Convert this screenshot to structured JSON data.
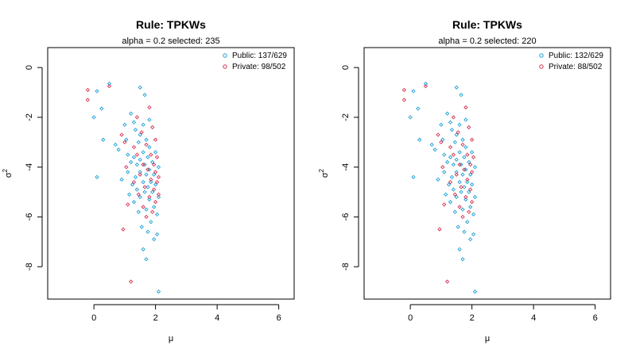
{
  "figure": {
    "colors": {
      "public": "#1a9fd6",
      "private": "#d6304e",
      "axis": "#000000"
    }
  },
  "chart_data": [
    {
      "type": "scatter",
      "title": "Rule:  TPKWs",
      "subtitle": "alpha =  0.2 selected:  235",
      "xlabel": "μ",
      "ylabel_base": "σ",
      "ylabel_sup": "2",
      "xlim": [
        -1.5,
        6.5
      ],
      "ylim": [
        -9.3,
        0.8
      ],
      "xticks": [
        0,
        2,
        4,
        6
      ],
      "yticks": [
        0,
        -2,
        -4,
        -6,
        -8
      ],
      "legend_position": "top-right",
      "series": [
        {
          "name": "Public: 137/629",
          "key": "public",
          "points": [
            [
              0.0,
              -2.0
            ],
            [
              0.1,
              -0.95
            ],
            [
              0.1,
              -4.4
            ],
            [
              0.25,
              -1.65
            ],
            [
              0.3,
              -2.9
            ],
            [
              0.5,
              -0.65
            ],
            [
              0.7,
              -3.1
            ],
            [
              0.8,
              -3.3
            ],
            [
              0.9,
              -4.5
            ],
            [
              1.0,
              -2.3
            ],
            [
              1.05,
              -2.9
            ],
            [
              1.1,
              -3.5
            ],
            [
              1.1,
              -4.2
            ],
            [
              1.15,
              -5.1
            ],
            [
              1.2,
              -1.85
            ],
            [
              1.2,
              -3.8
            ],
            [
              1.25,
              -4.7
            ],
            [
              1.3,
              -2.2
            ],
            [
              1.3,
              -3.6
            ],
            [
              1.3,
              -5.4
            ],
            [
              1.35,
              -2.5
            ],
            [
              1.35,
              -4.4
            ],
            [
              1.4,
              -3.9
            ],
            [
              1.4,
              -4.9
            ],
            [
              1.45,
              -3.0
            ],
            [
              1.45,
              -5.8
            ],
            [
              1.5,
              -0.8
            ],
            [
              1.5,
              -2.7
            ],
            [
              1.5,
              -3.7
            ],
            [
              1.5,
              -4.2
            ],
            [
              1.5,
              -5.2
            ],
            [
              1.55,
              -6.4
            ],
            [
              1.6,
              -2.3
            ],
            [
              1.6,
              -3.4
            ],
            [
              1.6,
              -4.6
            ],
            [
              1.6,
              -7.3
            ],
            [
              1.65,
              -1.1
            ],
            [
              1.65,
              -3.9
            ],
            [
              1.65,
              -5.0
            ],
            [
              1.7,
              -2.9
            ],
            [
              1.7,
              -4.3
            ],
            [
              1.7,
              -5.7
            ],
            [
              1.7,
              -7.7
            ],
            [
              1.75,
              -3.6
            ],
            [
              1.75,
              -4.8
            ],
            [
              1.75,
              -6.6
            ],
            [
              1.8,
              -2.1
            ],
            [
              1.8,
              -3.2
            ],
            [
              1.8,
              -4.1
            ],
            [
              1.8,
              -5.3
            ],
            [
              1.85,
              -4.6
            ],
            [
              1.85,
              -6.2
            ],
            [
              1.9,
              -3.8
            ],
            [
              1.9,
              -5.0
            ],
            [
              1.95,
              -4.3
            ],
            [
              1.95,
              -5.6
            ],
            [
              1.95,
              -6.9
            ],
            [
              2.0,
              -3.4
            ],
            [
              2.0,
              -4.7
            ],
            [
              2.05,
              -5.9
            ],
            [
              2.05,
              -6.7
            ],
            [
              2.1,
              -4.0
            ],
            [
              2.1,
              -5.2
            ],
            [
              2.1,
              -9.0
            ]
          ]
        },
        {
          "name": "Private: 98/502",
          "key": "private",
          "points": [
            [
              -0.2,
              -0.9
            ],
            [
              -0.2,
              -1.3
            ],
            [
              0.5,
              -0.75
            ],
            [
              0.9,
              -2.7
            ],
            [
              0.95,
              -6.5
            ],
            [
              1.0,
              -3.0
            ],
            [
              1.05,
              -4.0
            ],
            [
              1.1,
              -5.5
            ],
            [
              1.2,
              -8.6
            ],
            [
              1.3,
              -3.2
            ],
            [
              1.3,
              -4.6
            ],
            [
              1.4,
              -2.0
            ],
            [
              1.4,
              -3.5
            ],
            [
              1.45,
              -5.1
            ],
            [
              1.5,
              -4.3
            ],
            [
              1.55,
              -2.6
            ],
            [
              1.6,
              -3.9
            ],
            [
              1.6,
              -5.6
            ],
            [
              1.65,
              -4.8
            ],
            [
              1.7,
              -3.1
            ],
            [
              1.7,
              -6.0
            ],
            [
              1.75,
              -4.1
            ],
            [
              1.8,
              -5.2
            ],
            [
              1.8,
              -1.6
            ],
            [
              1.85,
              -3.5
            ],
            [
              1.85,
              -4.5
            ],
            [
              1.9,
              -2.4
            ],
            [
              1.9,
              -5.8
            ],
            [
              1.95,
              -3.9
            ],
            [
              1.95,
              -4.9
            ],
            [
              2.0,
              -2.9
            ],
            [
              2.0,
              -4.2
            ],
            [
              2.0,
              -5.4
            ],
            [
              2.05,
              -3.6
            ],
            [
              2.05,
              -4.6
            ],
            [
              2.1,
              -5.1
            ],
            [
              2.1,
              -4.4
            ]
          ]
        }
      ]
    },
    {
      "type": "scatter",
      "title": "Rule:  TPKWs",
      "subtitle": "alpha =  0.2 selected:  220",
      "xlabel": "μ",
      "ylabel_base": "σ",
      "ylabel_sup": "2",
      "xlim": [
        -1.5,
        6.5
      ],
      "ylim": [
        -9.3,
        0.8
      ],
      "xticks": [
        0,
        2,
        4,
        6
      ],
      "yticks": [
        0,
        -2,
        -4,
        -6,
        -8
      ],
      "legend_position": "top-right",
      "series": [
        {
          "name": "Public: 132/629",
          "key": "public",
          "points": [
            [
              0.0,
              -2.0
            ],
            [
              0.1,
              -0.95
            ],
            [
              0.1,
              -4.4
            ],
            [
              0.25,
              -1.65
            ],
            [
              0.3,
              -2.9
            ],
            [
              0.5,
              -0.65
            ],
            [
              0.7,
              -3.1
            ],
            [
              0.8,
              -3.3
            ],
            [
              0.9,
              -4.5
            ],
            [
              1.0,
              -2.3
            ],
            [
              1.05,
              -2.9
            ],
            [
              1.1,
              -3.5
            ],
            [
              1.1,
              -4.2
            ],
            [
              1.15,
              -5.1
            ],
            [
              1.2,
              -1.85
            ],
            [
              1.2,
              -3.8
            ],
            [
              1.25,
              -4.7
            ],
            [
              1.3,
              -2.2
            ],
            [
              1.3,
              -3.6
            ],
            [
              1.3,
              -5.4
            ],
            [
              1.35,
              -2.5
            ],
            [
              1.35,
              -4.4
            ],
            [
              1.4,
              -3.9
            ],
            [
              1.4,
              -4.9
            ],
            [
              1.45,
              -3.0
            ],
            [
              1.45,
              -5.8
            ],
            [
              1.5,
              -0.8
            ],
            [
              1.5,
              -2.7
            ],
            [
              1.5,
              -3.7
            ],
            [
              1.5,
              -4.2
            ],
            [
              1.5,
              -5.2
            ],
            [
              1.55,
              -6.4
            ],
            [
              1.6,
              -2.3
            ],
            [
              1.6,
              -3.4
            ],
            [
              1.6,
              -4.6
            ],
            [
              1.6,
              -7.3
            ],
            [
              1.65,
              -1.1
            ],
            [
              1.65,
              -3.9
            ],
            [
              1.65,
              -5.0
            ],
            [
              1.7,
              -2.9
            ],
            [
              1.7,
              -4.3
            ],
            [
              1.7,
              -5.7
            ],
            [
              1.7,
              -7.7
            ],
            [
              1.75,
              -3.6
            ],
            [
              1.75,
              -4.8
            ],
            [
              1.75,
              -6.6
            ],
            [
              1.8,
              -2.1
            ],
            [
              1.8,
              -3.2
            ],
            [
              1.8,
              -4.1
            ],
            [
              1.8,
              -5.3
            ],
            [
              1.85,
              -4.6
            ],
            [
              1.85,
              -6.2
            ],
            [
              1.9,
              -3.8
            ],
            [
              1.9,
              -5.0
            ],
            [
              1.95,
              -4.3
            ],
            [
              1.95,
              -5.6
            ],
            [
              1.95,
              -6.9
            ],
            [
              2.0,
              -3.4
            ],
            [
              2.0,
              -4.7
            ],
            [
              2.05,
              -5.9
            ],
            [
              2.05,
              -6.7
            ],
            [
              2.1,
              -4.0
            ],
            [
              2.1,
              -5.2
            ],
            [
              2.1,
              -9.0
            ]
          ]
        },
        {
          "name": "Private: 88/502",
          "key": "private",
          "points": [
            [
              -0.2,
              -0.9
            ],
            [
              -0.2,
              -1.3
            ],
            [
              0.5,
              -0.75
            ],
            [
              0.9,
              -2.7
            ],
            [
              0.95,
              -6.5
            ],
            [
              1.0,
              -3.0
            ],
            [
              1.05,
              -4.0
            ],
            [
              1.1,
              -5.5
            ],
            [
              1.2,
              -8.6
            ],
            [
              1.3,
              -3.2
            ],
            [
              1.3,
              -4.6
            ],
            [
              1.4,
              -2.0
            ],
            [
              1.4,
              -3.5
            ],
            [
              1.45,
              -5.1
            ],
            [
              1.5,
              -4.3
            ],
            [
              1.55,
              -2.6
            ],
            [
              1.6,
              -3.9
            ],
            [
              1.6,
              -5.6
            ],
            [
              1.65,
              -4.8
            ],
            [
              1.7,
              -3.1
            ],
            [
              1.7,
              -6.0
            ],
            [
              1.75,
              -4.1
            ],
            [
              1.8,
              -5.2
            ],
            [
              1.8,
              -1.6
            ],
            [
              1.85,
              -3.5
            ],
            [
              1.85,
              -4.5
            ],
            [
              1.9,
              -2.4
            ],
            [
              1.9,
              -5.8
            ],
            [
              1.95,
              -3.9
            ],
            [
              1.95,
              -4.9
            ],
            [
              2.0,
              -2.9
            ],
            [
              2.0,
              -4.2
            ],
            [
              2.0,
              -5.4
            ],
            [
              2.05,
              -3.6
            ]
          ]
        }
      ]
    }
  ]
}
